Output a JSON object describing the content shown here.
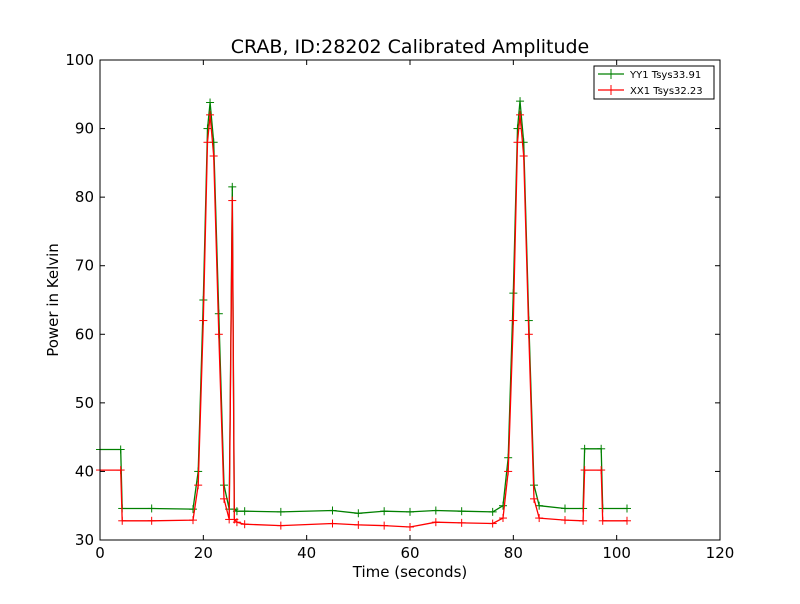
{
  "chart_data": {
    "type": "line",
    "title": "CRAB, ID:28202 Calibrated Amplitude",
    "xlabel": "Time (seconds)",
    "ylabel": "Power in Kelvin",
    "xlim": [
      0,
      120
    ],
    "ylim": [
      30,
      100
    ],
    "xticks": [
      0,
      20,
      40,
      60,
      80,
      100,
      120
    ],
    "yticks": [
      30,
      40,
      50,
      60,
      70,
      80,
      90,
      100
    ],
    "grid": false,
    "legend_position": "top-right",
    "series": [
      {
        "name": "YY1 Tsys33.91",
        "color": "#008000",
        "x": [
          0,
          4,
          4.3,
          10,
          18,
          19,
          20,
          20.8,
          21.3,
          22,
          23,
          24,
          25,
          25.6,
          26,
          26.5,
          28,
          35,
          45,
          50,
          55,
          60,
          65,
          70,
          76,
          78,
          79,
          80,
          80.8,
          81.3,
          82,
          83,
          84,
          85,
          90,
          93.5,
          93.8,
          97,
          97.3,
          102
        ],
        "y": [
          43.2,
          43.2,
          34.6,
          34.6,
          34.5,
          40,
          65,
          90,
          93.8,
          88,
          63,
          38,
          34.5,
          81.5,
          34.5,
          34.2,
          34.2,
          34.1,
          34.3,
          33.9,
          34.2,
          34.1,
          34.3,
          34.2,
          34.1,
          35,
          42,
          66,
          90,
          94,
          88,
          62,
          38,
          35,
          34.6,
          34.6,
          43.3,
          43.3,
          34.6,
          34.6
        ]
      },
      {
        "name": "XX1 Tsys32.23",
        "color": "#ff0000",
        "x": [
          0,
          4,
          4.3,
          10,
          18,
          19,
          20,
          20.8,
          21.3,
          22,
          23,
          24,
          25,
          25.6,
          26,
          26.5,
          28,
          35,
          45,
          50,
          55,
          60,
          65,
          70,
          76,
          78,
          79,
          80,
          80.8,
          81.3,
          82,
          83,
          84,
          85,
          90,
          93.5,
          93.8,
          97,
          97.3,
          102
        ],
        "y": [
          40.2,
          40.2,
          32.8,
          32.8,
          32.9,
          38,
          62,
          88,
          92,
          86,
          60,
          36,
          33,
          79.5,
          33,
          32.6,
          32.3,
          32.1,
          32.4,
          32.2,
          32.1,
          31.9,
          32.6,
          32.5,
          32.4,
          33.2,
          40,
          62,
          88,
          92,
          86,
          60,
          36,
          33.2,
          32.9,
          32.8,
          40.2,
          40.2,
          32.8,
          32.8
        ]
      }
    ]
  }
}
